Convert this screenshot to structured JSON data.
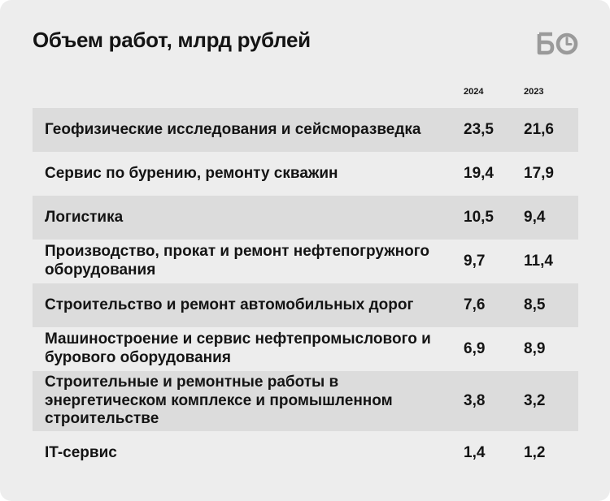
{
  "header": {
    "title": "Объем работ, млрд рублей",
    "logo_text": "БО"
  },
  "chart_data": {
    "type": "table",
    "title": "Объем работ, млрд рублей",
    "columns": [
      "2024",
      "2023"
    ],
    "rows": [
      {
        "label": "Геофизические исследования и сейсморазведка",
        "v2024": "23,5",
        "v2023": "21,6"
      },
      {
        "label": "Сервис по бурению, ремонту скважин",
        "v2024": "19,4",
        "v2023": "17,9"
      },
      {
        "label": "Логистика",
        "v2024": "10,5",
        "v2023": "9,4"
      },
      {
        "label": "Производство, прокат и ремонт нефтепогружного оборудования",
        "v2024": "9,7",
        "v2023": "11,4"
      },
      {
        "label": "Строительство и ремонт автомобильных дорог",
        "v2024": "7,6",
        "v2023": "8,5"
      },
      {
        "label": "Машиностроение и сервис нефтепромыслового и бурового оборудования",
        "v2024": "6,9",
        "v2023": "8,9"
      },
      {
        "label": "Строительные и ремонтные работы в энергетическом комплексе и промышленном строительстве",
        "v2024": "3,8",
        "v2023": "3,2"
      },
      {
        "label": "IT-сервис",
        "v2024": "1,4",
        "v2023": "1,2"
      }
    ]
  },
  "colors": {
    "background": "#ededed",
    "row_shade": "#dcdcdc",
    "text": "#141414",
    "logo": "#9a9a9a"
  }
}
